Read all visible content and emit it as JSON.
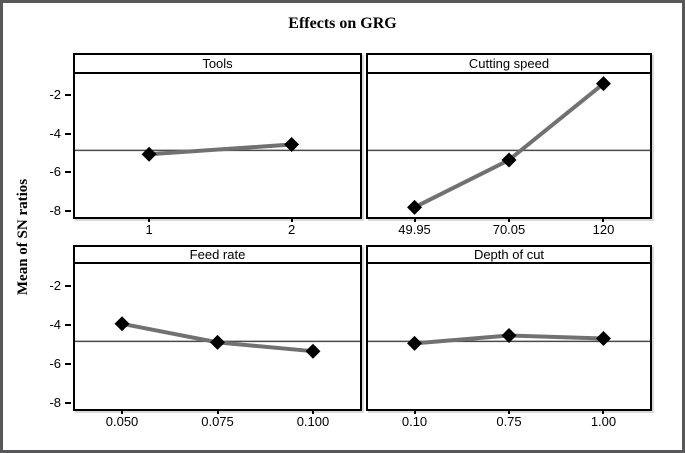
{
  "chart_data": {
    "type": "line",
    "title": "Effects on GRG",
    "ylabel": "Mean of SN ratios",
    "layout_hint": "2x2 panel main-effects plot, shared y axis, grid off, reference line at grand mean",
    "ylim": [
      -8.2,
      -0.8
    ],
    "y_ticks": [
      -2,
      -4,
      -6,
      -8
    ],
    "y_tick_labels": [
      "-2",
      "-4",
      "-6",
      "-8"
    ],
    "reference_line": -4.75,
    "marker": "diamond",
    "panels": [
      {
        "title": "Tools",
        "categories": [
          "1",
          "2"
        ],
        "values": [
          -4.95,
          -4.45
        ]
      },
      {
        "title": "Cutting speed",
        "categories": [
          "49.95",
          "70.05",
          "120"
        ],
        "values": [
          -7.7,
          -5.25,
          -1.3
        ]
      },
      {
        "title": "Feed rate",
        "categories": [
          "0.050",
          "0.075",
          "0.100"
        ],
        "values": [
          -3.85,
          -4.8,
          -5.25
        ]
      },
      {
        "title": "Depth of cut",
        "categories": [
          "0.10",
          "0.75",
          "1.00"
        ],
        "values": [
          -4.85,
          -4.45,
          -4.6
        ]
      }
    ],
    "colors": {
      "line": "#717171",
      "marker": "#000000",
      "reference_line": "#4a4a4a",
      "panel_border": "#000000",
      "frame": "#58585a",
      "background": "#ffffff"
    }
  }
}
